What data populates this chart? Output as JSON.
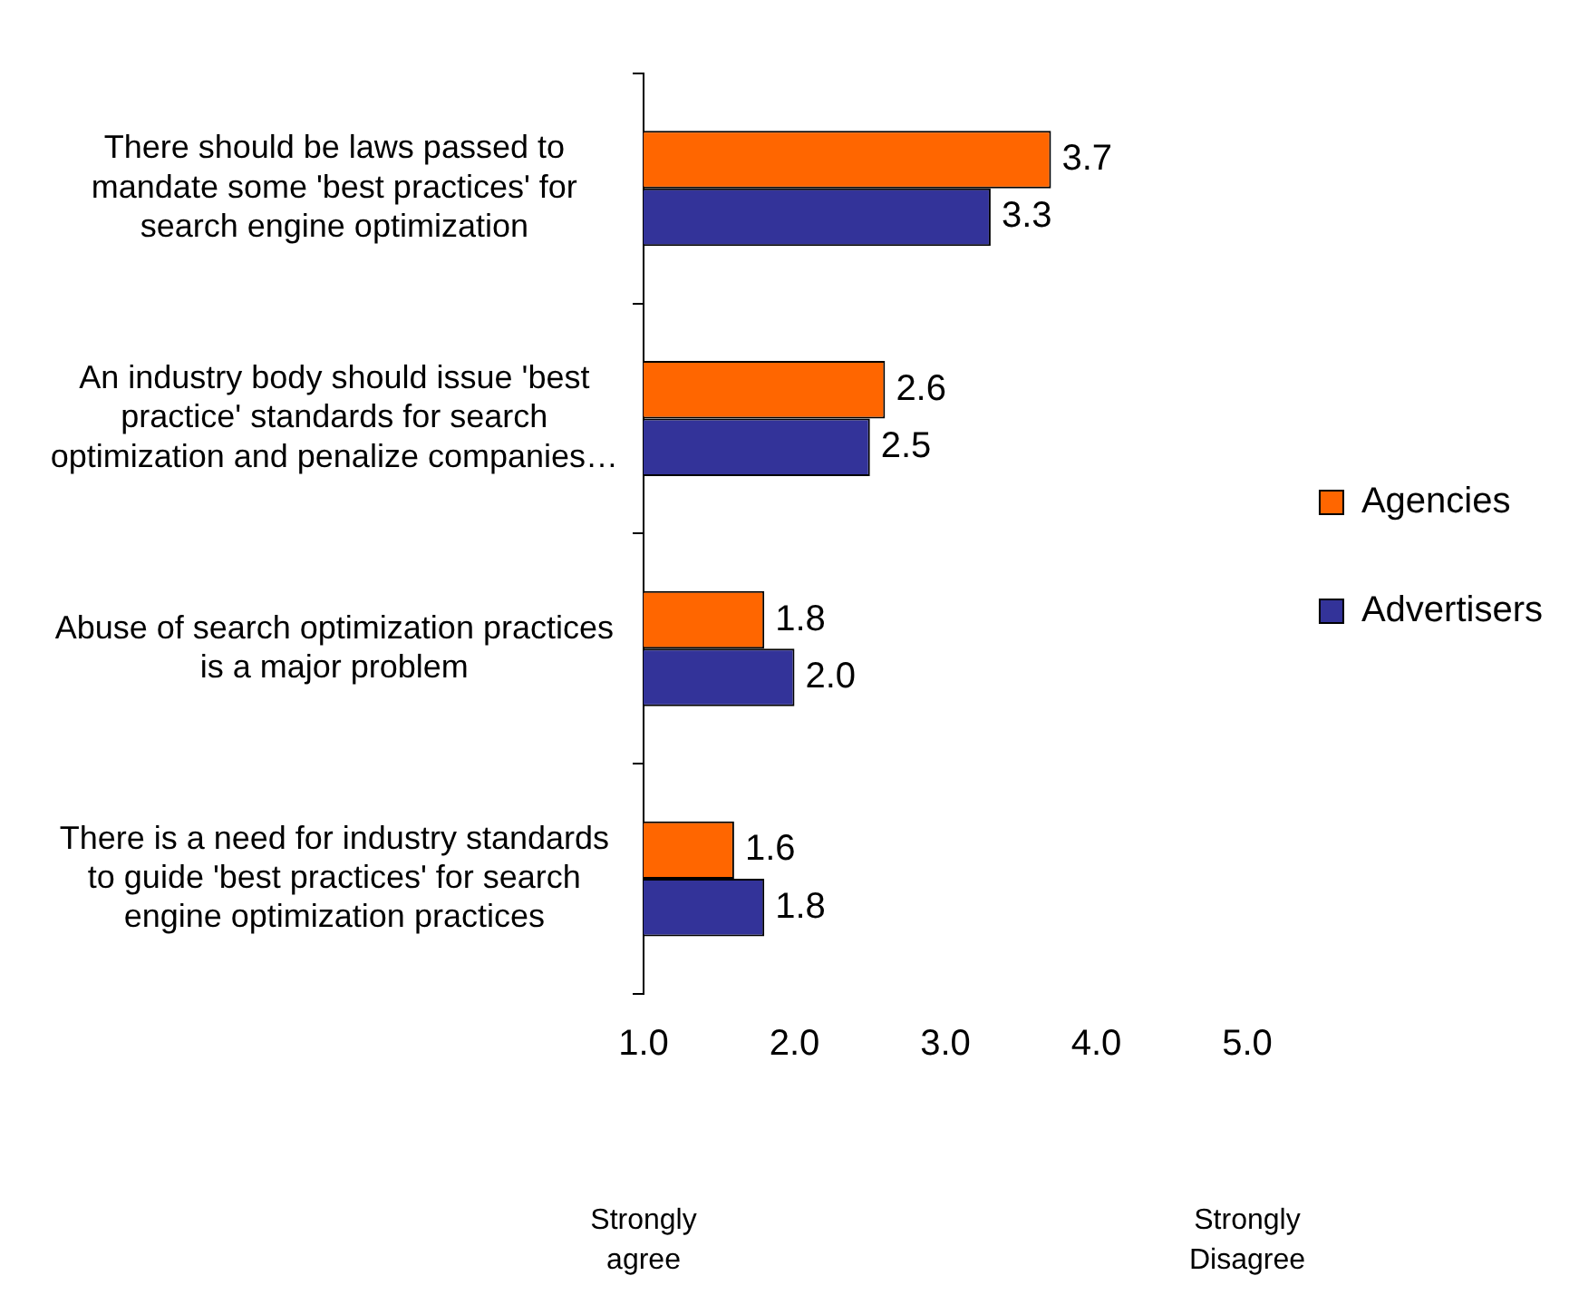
{
  "chart_data": {
    "type": "bar",
    "orientation": "horizontal",
    "categories": [
      "There should be laws passed to mandate some 'best practices' for search engine optimization",
      "An industry body should issue 'best practice' standards for search optimization and penalize companies…",
      "Abuse of search optimization practices is a major problem",
      "There is a need for industry standards to guide 'best practices' for search engine optimization practices"
    ],
    "series": [
      {
        "name": "Agencies",
        "color": "#ff6600",
        "values": [
          3.7,
          2.6,
          1.8,
          1.6
        ],
        "value_labels": [
          "3.7",
          "2.6",
          "1.8",
          "1.6"
        ]
      },
      {
        "name": "Advertisers",
        "color": "#333399",
        "values": [
          3.3,
          2.5,
          2.0,
          1.8
        ],
        "value_labels": [
          "3.3",
          "2.5",
          "2.0",
          "1.8"
        ]
      }
    ],
    "xlim": [
      1,
      5
    ],
    "xticks": [
      {
        "value": 1,
        "label": "1.0"
      },
      {
        "value": 2,
        "label": "2.0"
      },
      {
        "value": 3,
        "label": "3.0"
      },
      {
        "value": 4,
        "label": "4.0"
      },
      {
        "value": 5,
        "label": "5.0"
      }
    ],
    "annotations": [
      "Strongly agree",
      "Strongly Disagree"
    ],
    "grid": false,
    "legend": "right"
  }
}
